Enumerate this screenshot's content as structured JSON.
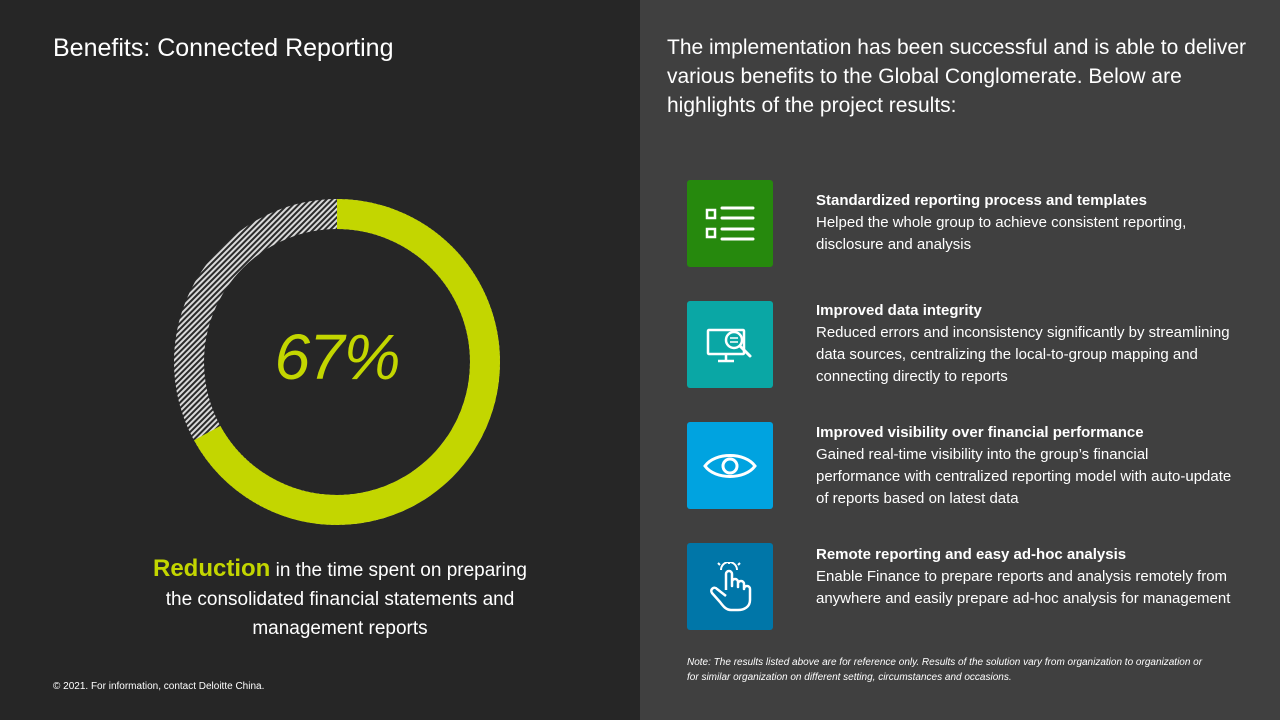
{
  "slide": {
    "title": "Benefits: Connected Reporting",
    "footer": "© 2021. For information, contact Deloitte China."
  },
  "metric": {
    "value_text": "67%",
    "value": 0.67,
    "highlight": "Reduction",
    "caption_line1": " in the time spent on preparing",
    "caption_line2": "the consolidated financial statements and",
    "caption_line3": "management reports",
    "accent_color": "#c3d600"
  },
  "intro": {
    "text": "The implementation has been successful and is able to deliver various benefits to the Global Conglomerate. Below are highlights of the project results:"
  },
  "benefits": [
    {
      "icon": "checklist-icon",
      "color": "#26890d",
      "title": "Standardized reporting process and templates",
      "description": "Helped the whole group to achieve consistent reporting, disclosure and analysis"
    },
    {
      "icon": "monitor-search-icon",
      "color": "#0d8390",
      "title": "Improved data integrity",
      "description": "Reduced errors and inconsistency significantly by streamlining data sources, centralizing the local-to-group mapping and connecting directly to reports"
    },
    {
      "icon": "eye-icon",
      "color": "#00a3e0",
      "title": "Improved visibility over financial performance",
      "description": "Gained real-time visibility into the group’s financial performance with centralized reporting model with auto-update of reports based on latest data"
    },
    {
      "icon": "touch-hand-icon",
      "color": "#0076a8",
      "title": "Remote reporting and easy ad-hoc analysis",
      "description": "Enable Finance to prepare reports and analysis remotely from anywhere and easily prepare ad-hoc analysis for management"
    }
  ],
  "note": "Note: The results listed above are for reference only. Results of the solution vary from organization to organization or for similar organization on different setting, circumstances and occasions."
}
